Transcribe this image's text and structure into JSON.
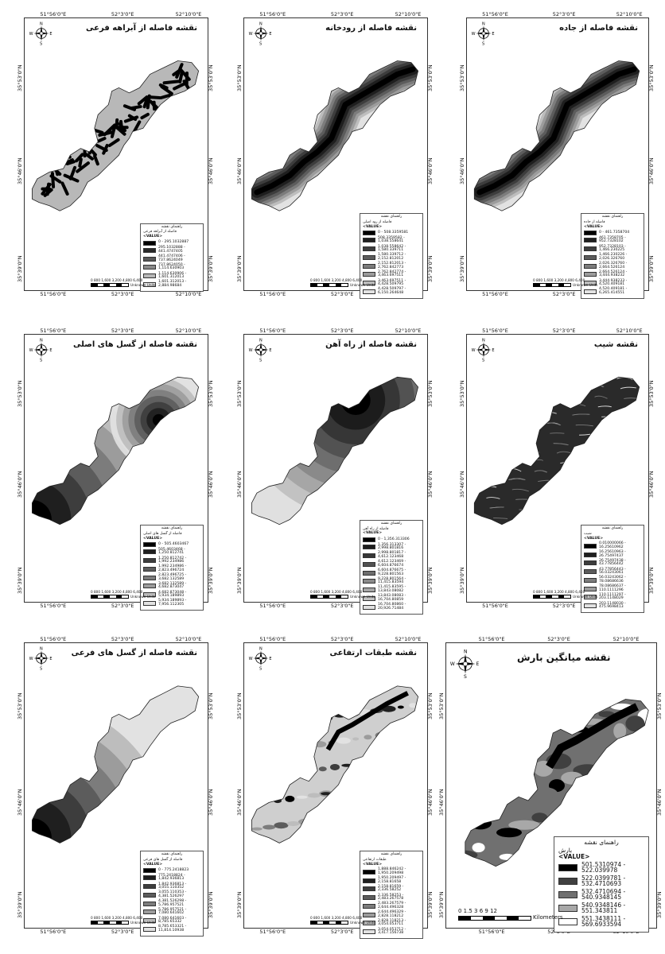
{
  "lon_labels": [
    "51°56'0\"E",
    "52°3'0\"E",
    "52°10'0\"E"
  ],
  "lat_labels": [
    "35°53'0\"N",
    "35°46'0\"N",
    "35°39'0\"N"
  ],
  "compass": {
    "n": "N",
    "s": "S",
    "e": "E",
    "w": "W"
  },
  "panels": [
    {
      "title": "نقشه فاصله از آبراهه فرعی",
      "legend_title": "راهنمای نقشه",
      "field": "فاصله از آبراهه فرعی",
      "value_label": "<VALUE>",
      "classes": [
        "0 - 295.1032887",
        "295.1032888 - 441.4747405",
        "441.4747406 - 737.8624049",
        "737.8624050 - 1,114.630903",
        "1,114.630906 - 1,601.312013",
        "1,601.312013 - 2,884.98684"
      ],
      "colors": [
        "#000000",
        "#2a2a2a",
        "#595959",
        "#8a8a8a",
        "#b8b8b8",
        "#e6e6e6"
      ],
      "scale": "0  800  1,600   3,200   4,800   6,400",
      "units": "Unknown Units"
    },
    {
      "title": "نقشه فاصله از رودخانه",
      "legend_title": "راهنمای نقشه",
      "field": "فاصله از رود اصلی",
      "value_label": "<VALUE>",
      "classes": [
        "0 - 508.3359581",
        "508.3359582 - 1,038.558641",
        "1,038.558642 - 1,580.339711",
        "1,580.339712 - 2,152.812012",
        "2,152.812013 - 2,762.842773",
        "2,762.842774 - 3,463.697511",
        "3,463.697511 - 4,428.509795",
        "4,428.509797 - 6,150.264648"
      ],
      "colors": [
        "#000000",
        "#1f1f1f",
        "#3d3d3d",
        "#5c5c5c",
        "#7c7c7c",
        "#9c9c9c",
        "#bdbdbd",
        "#e2e2e2"
      ],
      "scale": "0  800  1,600   3,200   4,800   6,400",
      "units": "Unknown Units"
    },
    {
      "title": "نقشه فاصله از جاده",
      "legend_title": "راهنمای نقشه",
      "field": "فاصله از جاده",
      "value_label": "<VALUE>",
      "classes": [
        "0 - 461.7358704",
        "461.7358705 - 952.7328102",
        "952.7328103 - 1,466.230225",
        "1,466.230226 - 2,026.326760",
        "2,026.326760 - 2,664.526124",
        "2,664.526124 - 3,444.938232",
        "3,444.938233 - 4,520.409181",
        "4,520.409181 - 6,265.414551"
      ],
      "colors": [
        "#000000",
        "#1f1f1f",
        "#3d3d3d",
        "#5c5c5c",
        "#7c7c7c",
        "#9c9c9c",
        "#bdbdbd",
        "#e2e2e2"
      ],
      "scale": "0  800  1,600   3,200   4,800   6,400",
      "units": "Unknown Units"
    },
    {
      "title": "نقشه فاصله از گسل های اصلی",
      "legend_title": "راهنمای نقشه",
      "field": "فاصله از گسل های اصلی",
      "value_label": "<VALUE>",
      "classes": [
        "0 - 505.4603467",
        "505.4603468 - 1,250.812741",
        "1,250.812742 - 1,992.234986",
        "1,992.234986 - 2,823.496724",
        "2,823.496725 - 3,682.132589",
        "3,682.132589 - 4,682.873047",
        "4,682.873048 - 5,934.189893",
        "5,934.189893 - 7,956.112305"
      ],
      "colors": [
        "#000000",
        "#1f1f1f",
        "#3d3d3d",
        "#5c5c5c",
        "#7c7c7c",
        "#9c9c9c",
        "#bdbdbd",
        "#e2e2e2"
      ],
      "scale": "0  800  1,600   3,200   4,800   6,400",
      "units": "Unknown Units"
    },
    {
      "title": "نقشه فاصله از راه آهن",
      "legend_title": "راهنمای نقشه",
      "field": "فاصله از راه آهن",
      "value_label": "<VALUE>",
      "classes": [
        "0 - 1,356.313306",
        "1,356.313307 - 2,998.801816",
        "2,998.801817 - 4,612.123468",
        "4,612.123469 - 6,604.876674",
        "6,604.876675 - 9,228.801563",
        "9,228.801564 - 11,415.83594",
        "11,415.83595 - 13,843.08082",
        "13,843.08083 - 16,704.80859",
        "16,704.80860 - 20,926.71484"
      ],
      "colors": [
        "#000000",
        "#1c1c1c",
        "#363636",
        "#525252",
        "#6e6e6e",
        "#8a8a8a",
        "#a6a6a6",
        "#c2c2c2",
        "#e0e0e0"
      ],
      "scale": "0  800  1,600   3,200   4,800   6,400",
      "units": "Unknown Units"
    },
    {
      "title": "نقشه شیب",
      "legend_title": "راهنمای نقشه",
      "field": "شیب",
      "value_label": "<VALUE>",
      "classes": [
        "0.010000066 - 16.25610962",
        "16.25610963 - 26.75497437",
        "26.75497438 - 43.77856442",
        "43.77856443 - 56.03243061",
        "56.03243062 - 78.08686636",
        "78.08686637 - 110.1111296",
        "110.1111297 - 203.1148029",
        "203.1148030 - 475.9698413"
      ],
      "colors": [
        "#000000",
        "#1f1f1f",
        "#3d3d3d",
        "#5c5c5c",
        "#7c7c7c",
        "#9c9c9c",
        "#bdbdbd",
        "#e2e2e2"
      ],
      "scale": "0  800  1,600   3,200   4,800   6,400",
      "units": "Unknown Units"
    },
    {
      "title": "نقشه فاصله از گسل های فرعی",
      "legend_title": "راهنمای نقشه",
      "field": "فاصله از گسل های فرعی",
      "value_label": "<VALUE>",
      "classes": [
        "0 - 775.2418823",
        "775.2418824 - 1,842.936813",
        "1,842.936813 - 3,055.110352",
        "3,055.110353 - 4,381.526297",
        "4,381.526298 - 5,786.957521",
        "5,786.957521 - 7,080.641602",
        "7,080.641603 - 8,785.65332",
        "8,785.653321 - 11,814.10938"
      ],
      "colors": [
        "#000000",
        "#1f1f1f",
        "#3d3d3d",
        "#5c5c5c",
        "#7c7c7c",
        "#9c9c9c",
        "#bdbdbd",
        "#e2e2e2"
      ],
      "scale": "0  800  1,600   3,200   4,800   6,400",
      "units": "Unknown Units"
    },
    {
      "title": "نقشه طبقات ارتفاعی",
      "legend_title": "راهنمای نقشه",
      "field": "طبقات ارتفاعی",
      "value_label": "<VALUE>",
      "classes": [
        "1,888.846242 - 1,950.209498",
        "1,950.209497 - 2,158.81658",
        "2,158.81659 - 2,336.58252",
        "2,336.58253 - 2,483.267578",
        "2,483.267579 - 2,644.496328",
        "2,644.496329 - 2,828.118212",
        "2,828.118213 - 3,054.053711",
        "3,054.053712 - 3,417.156738"
      ],
      "colors": [
        "#000000",
        "#1f1f1f",
        "#3d3d3d",
        "#5c5c5c",
        "#7c7c7c",
        "#9c9c9c",
        "#bdbdbd",
        "#e2e2e2"
      ],
      "scale": "0  800  1,600   3,200   4,800   6,400",
      "units": "Unknown Units"
    },
    {
      "title": "نقشه میانگین بارش",
      "legend_title": "راهنمای نقشه",
      "field": "بارش",
      "value_label": "<VALUE>",
      "classes": [
        "501.5310974 - 522.039978",
        "522.0399781 - 532.4710693",
        "532.4710694 - 540.9348145",
        "540.9348146 - 551.343811",
        "551.3438111 - 569.6933594"
      ],
      "colors": [
        "#000000",
        "#404040",
        "#707070",
        "#a8a8a8",
        "#ffffff"
      ],
      "scale": "0   1.5   3        6        9        12",
      "units": "Kilometers"
    }
  ]
}
